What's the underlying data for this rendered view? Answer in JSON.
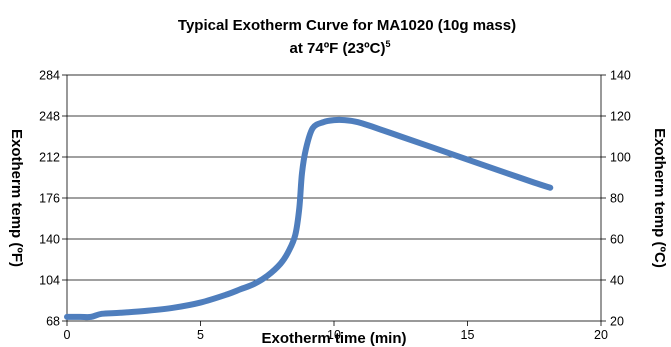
{
  "chart_data": {
    "type": "line",
    "title": "Typical Exotherm Curve for MA1020 (10g mass)",
    "subtitle": "at 74ºF (23ºC)",
    "subtitle_superscript": "5",
    "xlabel": "Exotherm time (min)",
    "ylabel_left": "Exotherm temp (ºF)",
    "ylabel_right": "Exotherm temp (ºC)",
    "xlim": [
      0,
      20
    ],
    "ylim_left": [
      68,
      284
    ],
    "ylim_right": [
      20,
      140
    ],
    "x_ticks": [
      "0",
      "5",
      "10",
      "15",
      "20"
    ],
    "y_ticks_left": [
      "68",
      "104",
      "140",
      "176",
      "212",
      "248",
      "284"
    ],
    "y_ticks_right": [
      "20",
      "40",
      "60",
      "80",
      "100",
      "120",
      "140"
    ],
    "grid": true,
    "series_color": "#4F7EBD",
    "series": [
      {
        "x": [
          0,
          0.5,
          0.9,
          1.3,
          2,
          3,
          4,
          5,
          6,
          6.5,
          7,
          7.5,
          8,
          8.3,
          8.55,
          8.7,
          8.8,
          8.95,
          9.2,
          9.6,
          10,
          10.4,
          10.9,
          11.5,
          12.5,
          13.5,
          14.5,
          15.5,
          16.5,
          17.5,
          18.1
        ],
        "y": [
          22,
          22,
          22,
          23.5,
          24,
          25,
          26.5,
          29,
          33,
          35.5,
          38,
          42,
          48,
          54,
          62,
          75,
          92,
          104,
          114,
          117,
          118,
          118,
          117,
          114.5,
          110,
          105.5,
          101,
          96.5,
          92,
          87.5,
          85
        ]
      }
    ]
  }
}
